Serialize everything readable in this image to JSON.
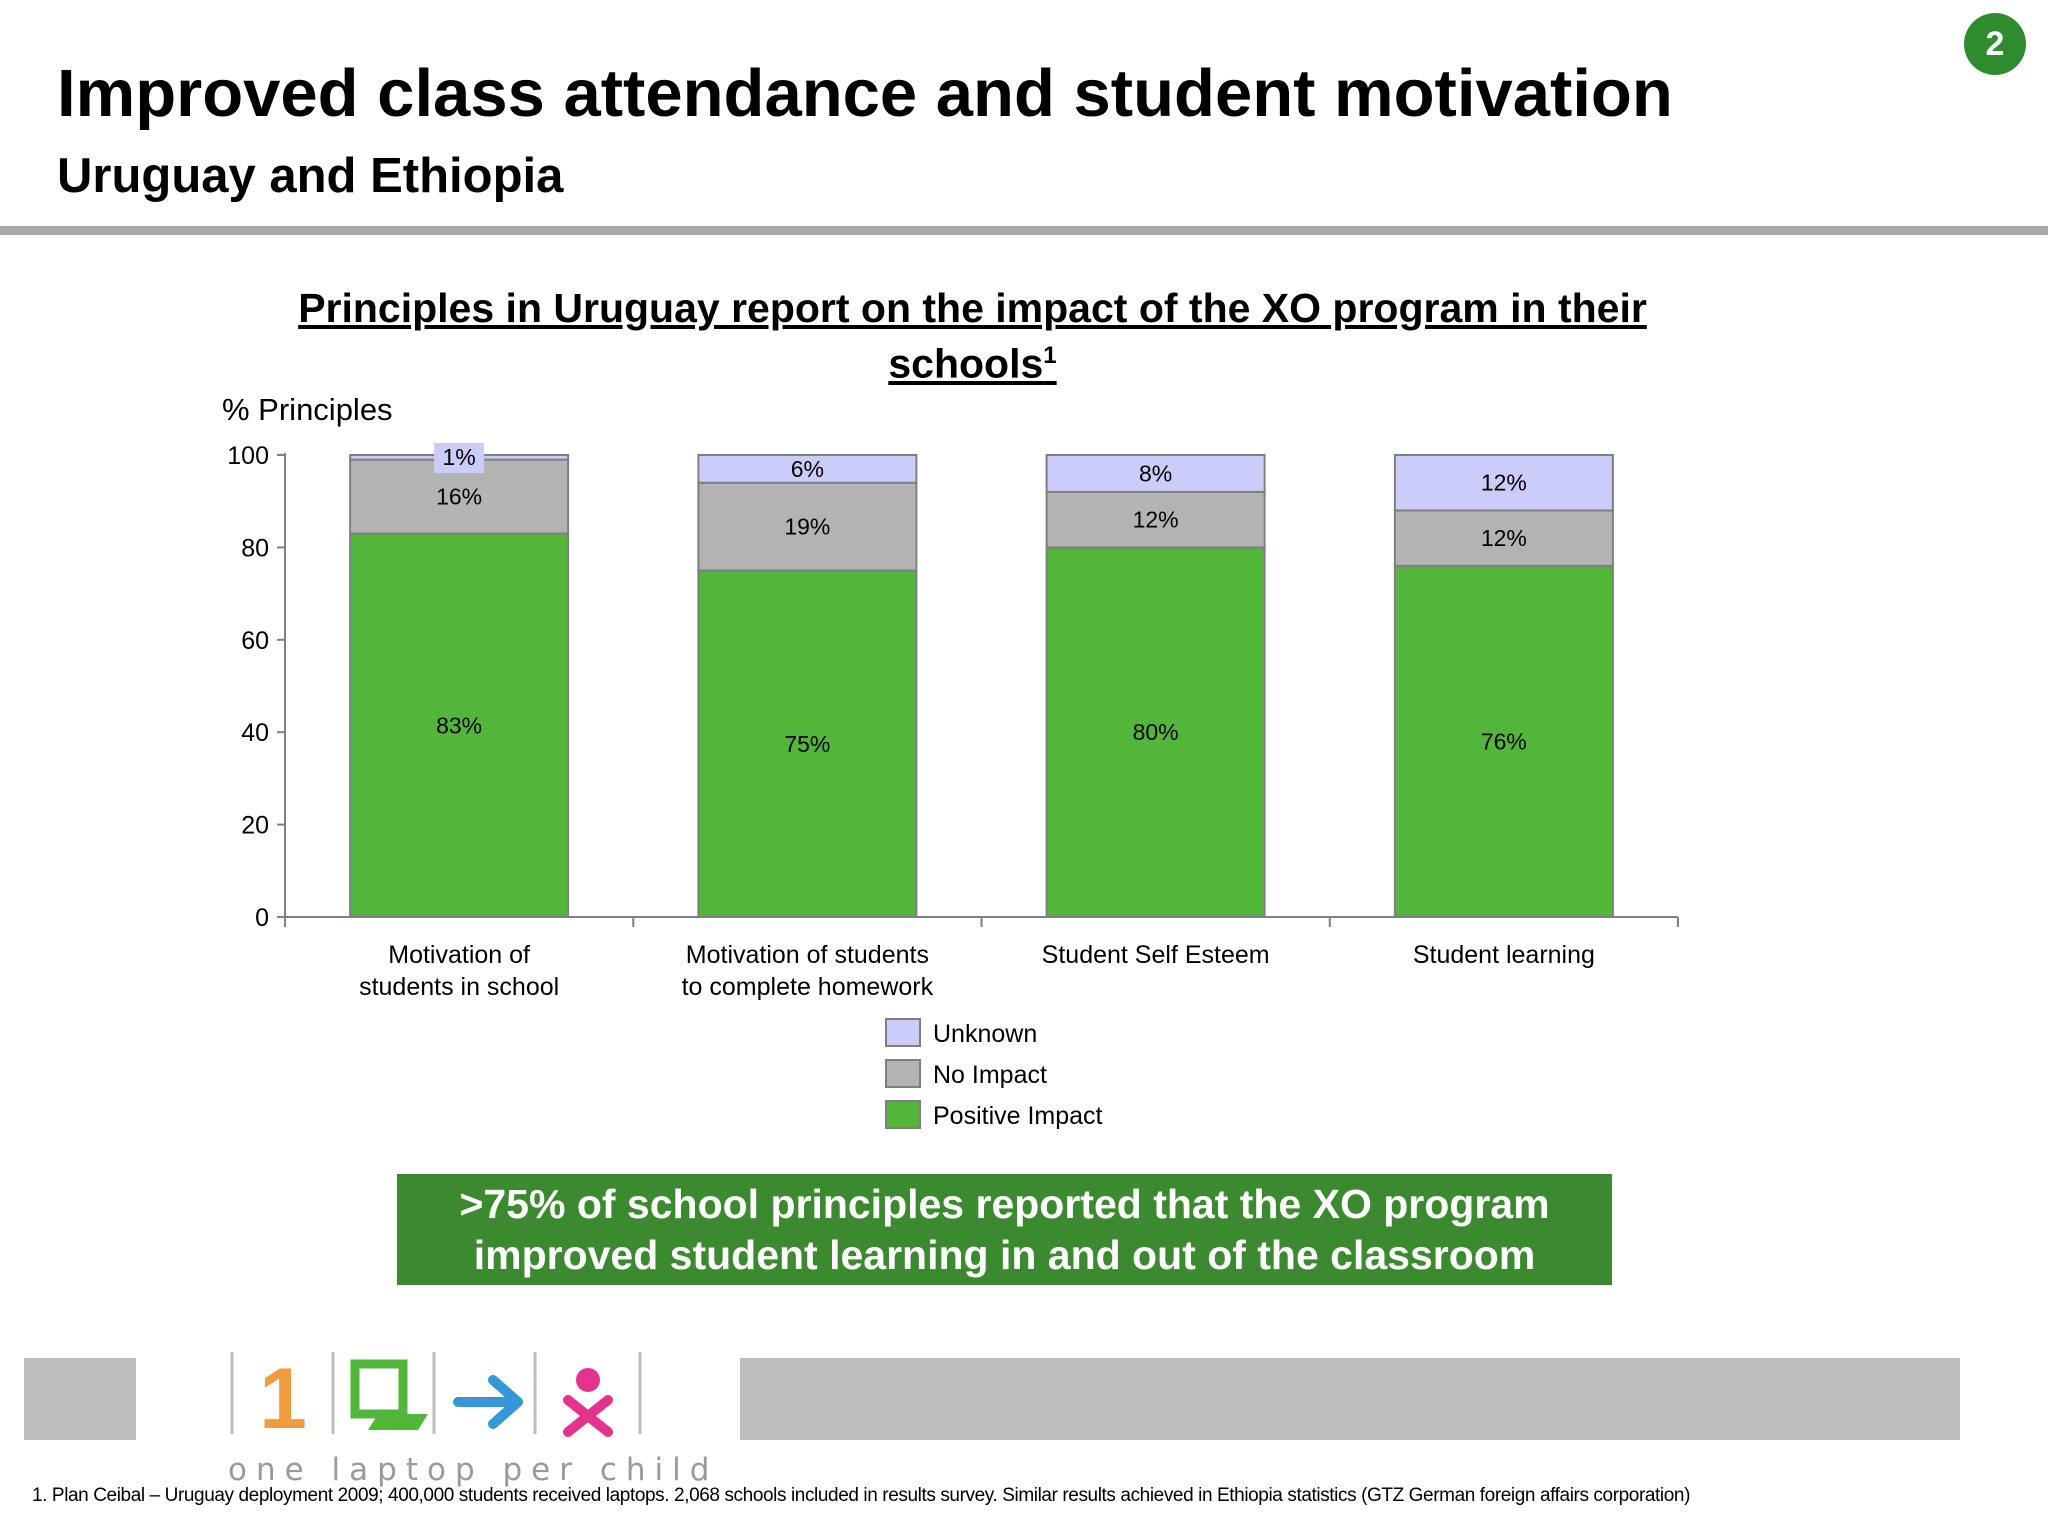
{
  "header": {
    "title": "Improved class attendance and student motivation",
    "subtitle": "Uruguay and Ethiopia",
    "page_number": "2"
  },
  "chart_title": {
    "text": "Principles in Uruguay report on the impact of the XO program in their schools",
    "footnote_marker": "1"
  },
  "chart_data": {
    "type": "bar",
    "stacked": true,
    "ylabel": "% Principles",
    "ylim": [
      0,
      100
    ],
    "yticks": [
      "0",
      "20",
      "40",
      "60",
      "80",
      "100"
    ],
    "categories": [
      [
        "Motivation of",
        "students in school"
      ],
      [
        "Motivation of students",
        "to complete homework"
      ],
      [
        "Student Self Esteem"
      ],
      [
        "Student learning"
      ]
    ],
    "series": [
      {
        "name": "Positive Impact",
        "color": "#52b63a",
        "values": [
          83,
          75,
          80,
          76
        ],
        "labels": [
          "83%",
          "75%",
          "80%",
          "76%"
        ]
      },
      {
        "name": "No Impact",
        "color": "#b3b3b3",
        "values": [
          16,
          19,
          12,
          12
        ],
        "labels": [
          "16%",
          "19%",
          "12%",
          "12%"
        ]
      },
      {
        "name": "Unknown",
        "color": "#ccccf8",
        "values": [
          1,
          6,
          8,
          12
        ],
        "labels": [
          "1%",
          "6%",
          "8%",
          "12%"
        ]
      }
    ],
    "legend": {
      "position": "bottom",
      "order": [
        "Unknown",
        "No Impact",
        "Positive Impact"
      ]
    },
    "grid": false
  },
  "callout": {
    "line1": ">75% of school principles reported that the XO program",
    "line2": "improved student learning in and out of the classroom",
    "color": "#3c8a2f"
  },
  "logo": {
    "digit": "1",
    "tagline": "one laptop per child",
    "icons": [
      "laptop-icon",
      "arrow-right-icon",
      "xo-child-icon"
    ]
  },
  "footnote": "1. Plan Ceibal – Uruguay deployment 2009; 400,000 students received laptops. 2,068 schools included in results survey.  Similar results achieved in Ethiopia statistics (GTZ German foreign affairs corporation)"
}
